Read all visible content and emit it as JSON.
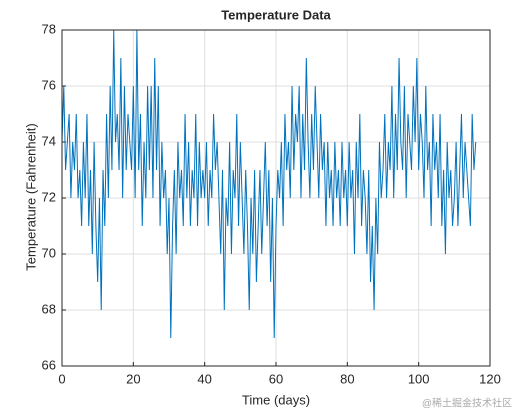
{
  "chart_data": {
    "type": "line",
    "title": "Temperature Data",
    "x_label": "Time (days)",
    "y_label": "Temperature (Fahrenheit)",
    "watermark": "@稀土掘金技术社区",
    "color": "#0072bd",
    "grid": true,
    "xlim": [
      0,
      120
    ],
    "xticks": [
      0,
      20,
      40,
      60,
      80,
      100,
      120
    ],
    "ylim": [
      66,
      78
    ],
    "yticks": [
      66,
      68,
      70,
      72,
      74,
      76,
      78
    ],
    "x": [
      0,
      0.5,
      1,
      1.5,
      2,
      2.5,
      3,
      3.5,
      4,
      4.5,
      5,
      5.5,
      6,
      6.5,
      7,
      7.5,
      8,
      8.5,
      9,
      9.5,
      10,
      10.5,
      11,
      11.5,
      12,
      12.5,
      13,
      13.5,
      14,
      14.5,
      15,
      15.5,
      16,
      16.5,
      17,
      17.5,
      18,
      18.5,
      19,
      19.5,
      20,
      20.5,
      21,
      21.5,
      22,
      22.5,
      23,
      23.5,
      24,
      24.5,
      25,
      25.5,
      26,
      26.5,
      27,
      27.5,
      28,
      28.5,
      29,
      29.5,
      30,
      30.5,
      31,
      31.5,
      32,
      32.5,
      33,
      33.5,
      34,
      34.5,
      35,
      35.5,
      36,
      36.5,
      37,
      37.5,
      38,
      38.5,
      39,
      39.5,
      40,
      40.5,
      41,
      41.5,
      42,
      42.5,
      43,
      43.5,
      44,
      44.5,
      45,
      45.5,
      46,
      46.5,
      47,
      47.5,
      48,
      48.5,
      49,
      49.5,
      50,
      50.5,
      51,
      51.5,
      52,
      52.5,
      53,
      53.5,
      54,
      54.5,
      55,
      55.5,
      56,
      56.5,
      57,
      57.5,
      58,
      58.5,
      59,
      59.5,
      60,
      60.5,
      61,
      61.5,
      62,
      62.5,
      63,
      63.5,
      64,
      64.5,
      65,
      65.5,
      66,
      66.5,
      67,
      67.5,
      68,
      68.5,
      69,
      69.5,
      70,
      70.5,
      71,
      71.5,
      72,
      72.5,
      73,
      73.5,
      74,
      74.5,
      75,
      75.5,
      76,
      76.5,
      77,
      77.5,
      78,
      78.5,
      79,
      79.5,
      80,
      80.5,
      81,
      81.5,
      82,
      82.5,
      83,
      83.5,
      84,
      84.5,
      85,
      85.5,
      86,
      86.5,
      87,
      87.5,
      88,
      88.5,
      89,
      89.5,
      90,
      90.5,
      91,
      91.5,
      92,
      92.5,
      93,
      93.5,
      94,
      94.5,
      95,
      95.5,
      96,
      96.5,
      97,
      97.5,
      98,
      98.5,
      99,
      99.5,
      100,
      100.5,
      101,
      101.5,
      102,
      102.5,
      103,
      103.5,
      104,
      104.5,
      105,
      105.5,
      106,
      106.5,
      107,
      107.5,
      108,
      108.5,
      109,
      109.5,
      110,
      110.5,
      111,
      111.5,
      112,
      112.5,
      113,
      113.5,
      114,
      114.5,
      115,
      115.5,
      116
    ],
    "values": [
      74,
      76,
      73,
      74,
      75,
      72,
      74,
      73,
      75,
      72,
      73,
      71,
      74,
      72,
      75,
      71,
      73,
      70,
      74,
      71,
      69,
      72,
      68,
      73,
      71,
      75,
      72,
      76,
      73,
      78,
      74,
      75,
      73,
      77,
      72,
      76,
      73,
      75,
      74,
      73,
      76,
      72,
      78,
      73,
      75,
      71,
      74,
      72,
      76,
      73,
      76,
      72,
      77,
      73,
      76,
      71,
      74,
      72,
      73,
      70,
      72,
      67,
      71,
      73,
      70,
      74,
      72,
      73,
      71,
      75,
      72,
      74,
      71,
      73,
      72,
      75,
      71,
      74,
      72,
      73,
      72,
      74,
      71,
      73,
      72,
      75,
      73,
      74,
      72,
      70,
      73,
      68,
      72,
      71,
      74,
      70,
      73,
      72,
      75,
      71,
      74,
      72,
      70,
      73,
      71,
      68,
      72,
      70,
      73,
      69,
      71,
      73,
      70,
      72,
      74,
      71,
      73,
      69,
      72,
      67,
      71,
      73,
      72,
      74,
      71,
      75,
      73,
      74,
      72,
      76,
      73,
      75,
      74,
      76,
      72,
      75,
      73,
      77,
      74,
      72,
      75,
      73,
      76,
      74,
      72,
      75,
      73,
      74,
      71,
      74,
      72,
      73,
      71,
      74,
      72,
      73,
      71,
      74,
      72,
      73,
      71,
      74,
      72,
      73,
      70,
      74,
      72,
      75,
      71,
      73,
      72,
      70,
      73,
      69,
      71,
      68,
      72,
      70,
      74,
      72,
      73,
      75,
      72,
      74,
      73,
      76,
      72,
      75,
      73,
      77,
      74,
      73,
      76,
      72,
      75,
      74,
      73,
      76,
      74,
      77,
      73,
      75,
      74,
      72,
      76,
      73,
      74,
      71,
      75,
      73,
      74,
      72,
      75,
      71,
      73,
      70,
      74,
      72,
      73,
      71,
      72,
      74,
      71,
      73,
      75,
      72,
      74,
      73,
      72,
      71,
      75,
      73,
      74
    ]
  }
}
